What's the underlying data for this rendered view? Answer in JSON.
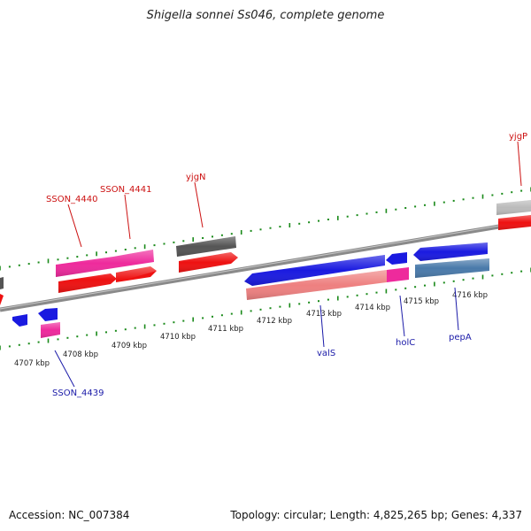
{
  "title": "Shigella sonnei Ss046, complete genome",
  "footer": {
    "accession": "Accession: NC_007384",
    "summary": "Topology: circular; Length: 4,825,265 bp; Genes: 4,337"
  },
  "colors": {
    "backbone": "#888888",
    "tick_green": "#1a8a1a",
    "label_red": "#cc1111",
    "label_blue": "#1a1aa8",
    "gene_magenta": "#ee2a9c",
    "gene_red": "#ee1111",
    "gene_gray": "#555555",
    "gene_lightgray": "#bbbbbb",
    "gene_blue": "#1a1ae0",
    "gene_salmon": "#ee8080",
    "gene_steelblue": "#4a7aaa"
  },
  "kbp_ticks": [
    "4707 kbp",
    "4708 kbp",
    "4709 kbp",
    "4710 kbp",
    "4711 kbp",
    "4712 kbp",
    "4713 kbp",
    "4714 kbp",
    "4715 kbp",
    "4716 kbp"
  ],
  "gene_labels": {
    "sson_4440": "SSON_4440",
    "sson_4441": "SSON_4441",
    "yjgn": "yjgN",
    "yjgp": "yjgP",
    "sson_4439": "SSON_4439",
    "vals": "valS",
    "holc": "holC",
    "pepa": "pepA"
  }
}
